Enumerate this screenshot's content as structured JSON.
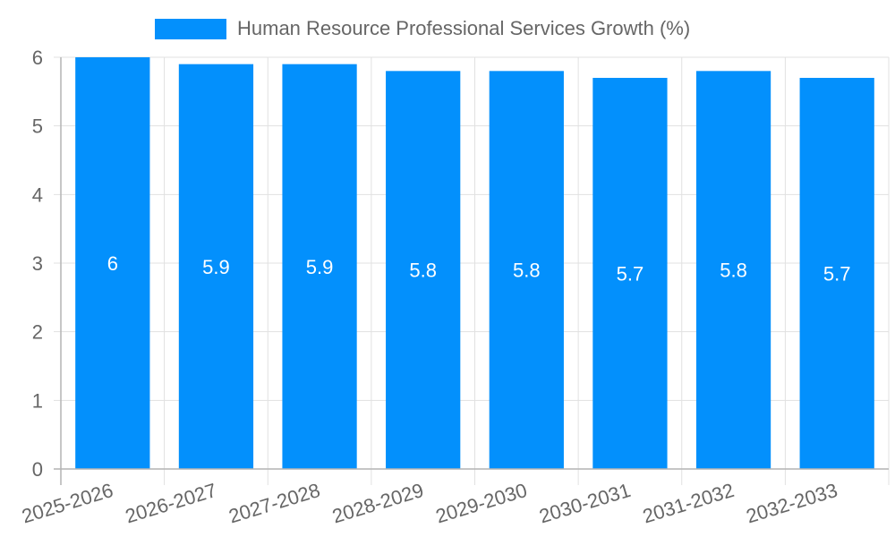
{
  "legend": {
    "label": "Human Resource Professional Services Growth (%)",
    "color": "#0390fc"
  },
  "colors": {
    "bar": "#0390fc",
    "grid": "#e1e1e1",
    "axis": "#b4b4b4",
    "tick_text": "#666666",
    "data_label": "#ffffff"
  },
  "chart_data": {
    "type": "bar",
    "title": "",
    "xlabel": "",
    "ylabel": "",
    "categories": [
      "2025-2026",
      "2026-2027",
      "2027-2028",
      "2028-2029",
      "2029-2030",
      "2030-2031",
      "2031-2032",
      "2032-2033"
    ],
    "series": [
      {
        "name": "Human Resource Professional Services Growth (%)",
        "values": [
          6,
          5.9,
          5.9,
          5.8,
          5.8,
          5.7,
          5.8,
          5.7
        ]
      }
    ],
    "data_labels": [
      "6",
      "5.9",
      "5.9",
      "5.8",
      "5.8",
      "5.7",
      "5.8",
      "5.7"
    ],
    "ylim": [
      0,
      6
    ],
    "yticks": [
      "0",
      "1",
      "2",
      "3",
      "4",
      "5",
      "6"
    ],
    "grid": true,
    "legend_position": "top"
  }
}
